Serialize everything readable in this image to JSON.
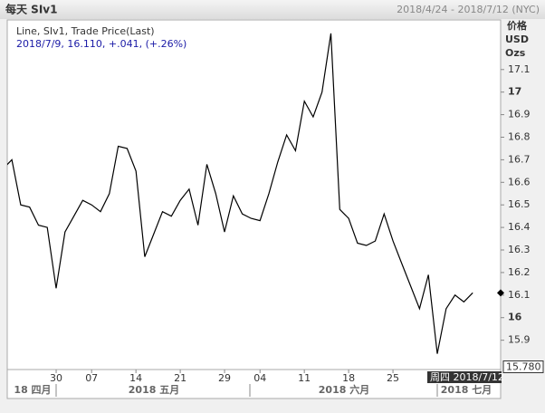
{
  "chart_data": {
    "type": "line",
    "title": "每天 SIv1",
    "date_range": "2018/4/24 - 2018/7/12 (NYC)",
    "legend_title": "Line, SIv1, Trade Price(Last)",
    "legend_detail": "2018/7/9, 16.110, +.041, (+.26%)",
    "axis_units": [
      "价格",
      "USD",
      "Ozs"
    ],
    "categories": [
      null,
      null,
      null,
      null,
      null,
      null,
      "30",
      null,
      null,
      null,
      "07",
      null,
      null,
      null,
      null,
      "14",
      null,
      null,
      null,
      null,
      "21",
      null,
      null,
      null,
      null,
      "29",
      null,
      null,
      null,
      "04",
      null,
      null,
      null,
      null,
      "11",
      null,
      null,
      null,
      null,
      "18",
      null,
      null,
      null,
      null,
      "25",
      null,
      null,
      null,
      null,
      null,
      null,
      null,
      null,
      null
    ],
    "month_labels": [
      "18 四月",
      "2018 五月",
      "2018 六月",
      "2018 七月"
    ],
    "cursor_label": "周四 2018/7/12",
    "series": [
      {
        "name": "SIv1",
        "color": "#000000",
        "values": [
          16.66,
          16.7,
          16.5,
          16.49,
          16.41,
          16.4,
          16.13,
          16.38,
          16.45,
          16.52,
          16.5,
          16.47,
          16.55,
          16.76,
          16.75,
          16.65,
          16.27,
          16.37,
          16.47,
          16.45,
          16.52,
          16.57,
          16.41,
          16.68,
          16.55,
          16.38,
          16.54,
          16.46,
          16.44,
          16.43,
          16.55,
          16.69,
          16.81,
          16.74,
          16.96,
          16.89,
          17.0,
          17.26,
          16.48,
          16.44,
          16.33,
          16.32,
          16.34,
          16.46,
          16.34,
          16.24,
          16.14,
          16.04,
          16.19,
          15.84,
          16.04,
          16.1,
          16.07,
          16.11
        ]
      }
    ],
    "bottom_label": {
      "value": 15.78,
      "label": "15.780"
    },
    "ylim": [
      15.77,
      17.32
    ],
    "yticks": [
      15.9,
      16,
      16.1,
      16.2,
      16.3,
      16.4,
      16.5,
      16.6,
      16.7,
      16.8,
      16.9,
      17,
      17.1
    ],
    "grid": false
  }
}
